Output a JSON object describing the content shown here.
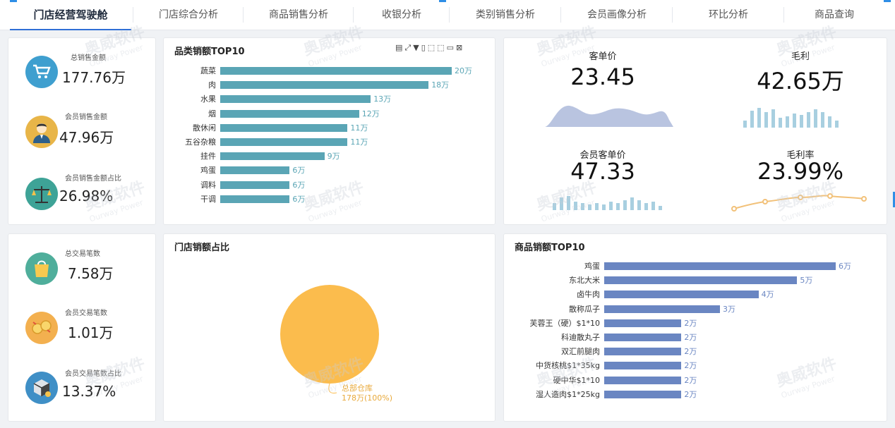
{
  "tabs": [
    {
      "label": "门店经营驾驶舱",
      "active": true
    },
    {
      "label": "门店综合分析",
      "active": false
    },
    {
      "label": "商品销售分析",
      "active": false
    },
    {
      "label": "收银分析",
      "active": false
    },
    {
      "label": "类别销售分析",
      "active": false
    },
    {
      "label": "会员画像分析",
      "active": false
    },
    {
      "label": "环比分析",
      "active": false
    },
    {
      "label": "商品查询",
      "active": false
    }
  ],
  "kpis_top": [
    {
      "label": "总销售金额",
      "value": "177.76万",
      "icon": "cart-icon",
      "color": "#3f9fcf"
    },
    {
      "label": "会员销售金额",
      "value": "47.96万",
      "icon": "member-avatar-icon",
      "color": "#e8b548"
    },
    {
      "label": "会员销售金额占比",
      "value": "26.98%",
      "icon": "scale-icon",
      "color": "#3ea397"
    }
  ],
  "kpis_bottom": [
    {
      "label": "总交易笔数",
      "value": "7.58万",
      "icon": "shopping-bag-icon",
      "color": "#4fae9b"
    },
    {
      "label": "会员交易笔数",
      "value": "1.01万",
      "icon": "coin-exchange-icon",
      "color": "#f3b04f"
    },
    {
      "label": "会员交易笔数占比",
      "value": "13.37%",
      "icon": "box-icon",
      "color": "#3f8fc6"
    }
  ],
  "category_chart": {
    "title": "品类销额TOP10",
    "toolbar_icons": [
      "table-icon",
      "fullscreen-icon",
      "filter-icon",
      "export-icon",
      "select-icon",
      "lasso-icon",
      "zoom-icon",
      "close-icon"
    ],
    "color": "#5aa5b5"
  },
  "metrics": [
    {
      "label": "客单价",
      "value": "23.45",
      "spark": "area"
    },
    {
      "label": "毛利",
      "value": "42.65万",
      "spark": "bars"
    },
    {
      "label": "会员客单价",
      "value": "47.33",
      "spark": "bars2"
    },
    {
      "label": "毛利率",
      "value": "23.99%",
      "spark": "line"
    }
  ],
  "store_share": {
    "title": "门店销额占比",
    "label_name": "总部仓库",
    "label_value": "178万(100%)",
    "color": "#fbbc4d"
  },
  "product_chart": {
    "title": "商品销额TOP10",
    "color": "#6a86c2"
  },
  "watermark": {
    "cn": "奥威软件",
    "en": "Ourway Power"
  },
  "chart_data": [
    {
      "type": "bar",
      "title": "品类销额TOP10",
      "orientation": "horizontal",
      "categories": [
        "蔬菜",
        "肉",
        "水果",
        "烟",
        "散休闲",
        "五谷杂粮",
        "挂件",
        "鸡蛋",
        "调料",
        "干调"
      ],
      "values": [
        20,
        18,
        13,
        12,
        11,
        11,
        9,
        6,
        6,
        6
      ],
      "value_labels": [
        "20万",
        "18万",
        "13万",
        "12万",
        "11万",
        "11万",
        "9万",
        "6万",
        "6万",
        "6万"
      ],
      "xlim": [
        0,
        20
      ]
    },
    {
      "type": "bar",
      "title": "商品销额TOP10",
      "orientation": "horizontal",
      "categories": [
        "鸡蛋",
        "东北大米",
        "卤牛肉",
        "散称瓜子",
        "芙蓉王（硬）$1*10",
        "科迪散丸子",
        "双汇前腿肉",
        "中货核桃$1*35kg",
        "硬中华$1*10",
        "湿人造肉$1*25kg"
      ],
      "values": [
        6,
        5,
        4,
        3,
        2,
        2,
        2,
        2,
        2,
        2
      ],
      "value_labels": [
        "6万",
        "5万",
        "4万",
        "3万",
        "2万",
        "2万",
        "2万",
        "2万",
        "2万",
        "2万"
      ],
      "xlim": [
        0,
        6
      ]
    },
    {
      "type": "pie",
      "title": "门店销额占比",
      "slices": [
        {
          "name": "总部仓库",
          "value": 178,
          "percent": 100
        }
      ]
    }
  ]
}
